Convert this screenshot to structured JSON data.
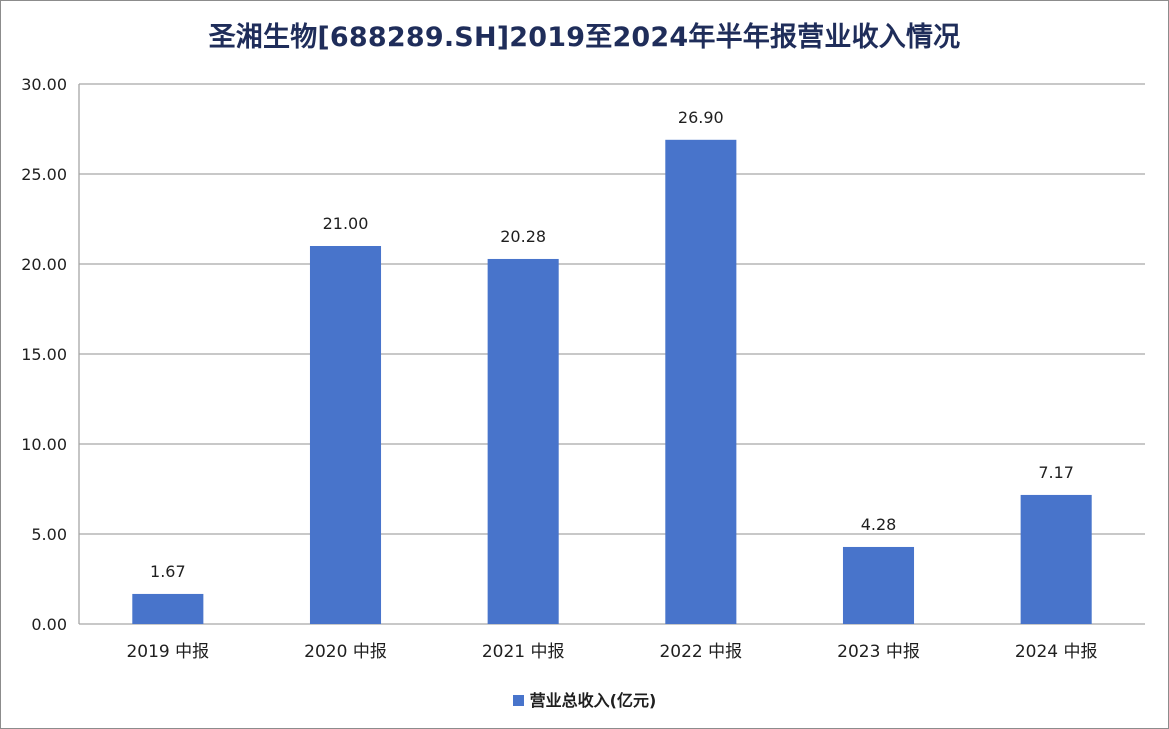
{
  "chart_data": {
    "type": "bar",
    "title": "圣湘生物[688289.SH]2019至2024年半年报营业收入情况",
    "categories": [
      "2019 中报",
      "2020 中报",
      "2021 中报",
      "2022 中报",
      "2023 中报",
      "2024 中报"
    ],
    "series": [
      {
        "name": "营业总收入(亿元)",
        "values": [
          1.67,
          21.0,
          20.28,
          26.9,
          4.28,
          7.17
        ],
        "labels": [
          "1.67",
          "21.00",
          "20.28",
          "26.90",
          "4.28",
          "7.17"
        ],
        "color": "#4874cb"
      }
    ],
    "ylim": [
      0,
      30
    ],
    "yticks": [
      "0.00",
      "5.00",
      "10.00",
      "15.00",
      "20.00",
      "25.00",
      "30.00"
    ],
    "ytick_values": [
      0,
      5,
      10,
      15,
      20,
      25,
      30
    ],
    "grid": true,
    "legend_position": "bottom"
  }
}
